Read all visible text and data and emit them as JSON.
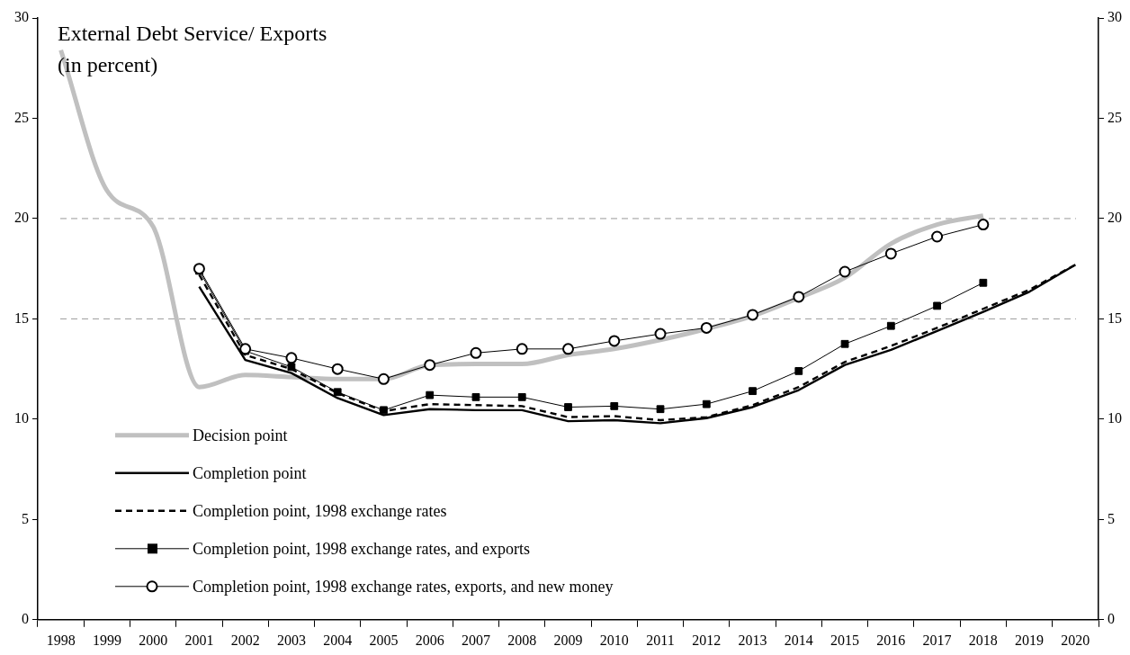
{
  "chart_data": {
    "type": "line",
    "title": "External Debt Service/ Exports",
    "subtitle": "(in percent)",
    "categories": [
      "1998",
      "1999",
      "2000",
      "2001",
      "2002",
      "2003",
      "2004",
      "2005",
      "2006",
      "2007",
      "2008",
      "2009",
      "2010",
      "2011",
      "2012",
      "2013",
      "2014",
      "2015",
      "2016",
      "2017",
      "2018",
      "2019",
      "2020"
    ],
    "series": [
      {
        "name": "Decision point",
        "color": "#c0c0c0",
        "line_style": "solid",
        "marker": "none",
        "values": [
          28.4,
          21.4,
          19.6,
          11.6,
          12.2,
          12.1,
          12.0,
          12.0,
          12.7,
          12.75,
          12.75,
          13.2,
          13.5,
          13.95,
          14.5,
          15.15,
          16.05,
          17.05,
          18.75,
          19.7,
          20.15,
          null,
          null
        ]
      },
      {
        "name": "Completion point",
        "color": "#000000",
        "line_style": "solid",
        "marker": "none",
        "values": [
          null,
          null,
          null,
          16.6,
          12.95,
          12.3,
          11.05,
          10.2,
          10.5,
          10.45,
          10.45,
          9.9,
          9.95,
          9.8,
          10.05,
          10.6,
          11.45,
          12.7,
          13.45,
          14.4,
          15.35,
          16.35,
          17.7
        ]
      },
      {
        "name": "Completion point, 1998 exchange rates",
        "color": "#000000",
        "line_style": "dashed",
        "marker": "none",
        "values": [
          null,
          null,
          null,
          17.2,
          13.2,
          12.5,
          11.3,
          10.4,
          10.75,
          10.7,
          10.65,
          10.1,
          10.15,
          9.95,
          10.1,
          10.7,
          11.6,
          12.85,
          13.65,
          14.55,
          15.5,
          16.45,
          17.7
        ]
      },
      {
        "name": "Completion point, 1998 exchange rates, and exports",
        "color": "#000000",
        "line_style": "solid",
        "marker": "square",
        "values": [
          null,
          null,
          null,
          17.4,
          13.4,
          12.6,
          11.35,
          10.45,
          11.2,
          11.1,
          11.1,
          10.6,
          10.65,
          10.5,
          10.75,
          11.4,
          12.4,
          13.75,
          14.65,
          15.65,
          16.8,
          null,
          null
        ]
      },
      {
        "name": "Completion point, 1998 exchange rates, exports, and new money",
        "color": "#000000",
        "line_style": "solid",
        "marker": "circle",
        "values": [
          null,
          null,
          null,
          17.5,
          13.5,
          13.05,
          12.5,
          12.0,
          12.7,
          13.3,
          13.5,
          13.5,
          13.9,
          14.25,
          14.55,
          15.2,
          16.1,
          17.35,
          18.25,
          19.1,
          19.7,
          null,
          null
        ]
      }
    ],
    "ylim": [
      0,
      30
    ],
    "yticks": [
      0,
      5,
      10,
      15,
      20,
      25,
      30
    ],
    "y2lim": [
      0,
      30
    ],
    "y2ticks": [
      0,
      5,
      10,
      15,
      20,
      25,
      30
    ],
    "ref_lines": [
      {
        "axis": "y",
        "value": 15,
        "color": "#808080",
        "line_style": "dashed"
      },
      {
        "axis": "y",
        "value": 20,
        "color": "#808080",
        "line_style": "dashed"
      }
    ],
    "grid": false,
    "legend": "bottom left"
  }
}
